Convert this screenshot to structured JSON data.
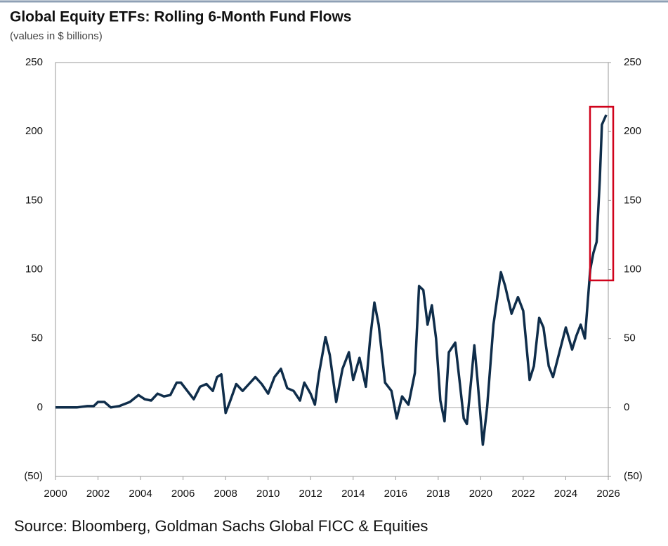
{
  "chart_data": {
    "type": "line",
    "title": "Global Equity ETFs: Rolling 6-Month Fund Flows",
    "subtitle": "(values in $ billions)",
    "source": "Source: Bloomberg, Goldman Sachs Global FICC & Equities",
    "color": "#0f2d4a",
    "x": [
      2000,
      2000.5,
      2001,
      2001.5,
      2001.8,
      2002,
      2002.3,
      2002.6,
      2003,
      2003.5,
      2003.9,
      2004.2,
      2004.5,
      2004.8,
      2005.1,
      2005.4,
      2005.7,
      2005.9,
      2006.2,
      2006.5,
      2006.8,
      2007.1,
      2007.4,
      2007.6,
      2007.8,
      2008.0,
      2008.2,
      2008.5,
      2008.8,
      2009.1,
      2009.4,
      2009.7,
      2010.0,
      2010.3,
      2010.6,
      2010.9,
      2011.2,
      2011.5,
      2011.7,
      2012.0,
      2012.2,
      2012.4,
      2012.7,
      2012.9,
      2013.2,
      2013.5,
      2013.8,
      2014.0,
      2014.3,
      2014.6,
      2014.8,
      2015.0,
      2015.2,
      2015.5,
      2015.8,
      2016.05,
      2016.3,
      2016.6,
      2016.9,
      2017.1,
      2017.3,
      2017.5,
      2017.7,
      2017.9,
      2018.1,
      2018.3,
      2018.5,
      2018.8,
      2019.0,
      2019.2,
      2019.35,
      2019.55,
      2019.7,
      2019.85,
      2020.1,
      2020.3,
      2020.6,
      2020.95,
      2021.15,
      2021.45,
      2021.75,
      2022.0,
      2022.3,
      2022.5,
      2022.75,
      2022.95,
      2023.2,
      2023.4,
      2023.7,
      2024.0,
      2024.3,
      2024.5,
      2024.7,
      2024.9,
      2025.15,
      2025.3,
      2025.45,
      2025.6,
      2025.7,
      2025.9
    ],
    "values": [
      0,
      0,
      0,
      1,
      1,
      4,
      4,
      0,
      1,
      4,
      9,
      6,
      5,
      10,
      8,
      9,
      18,
      18,
      12,
      6,
      15,
      17,
      12,
      22,
      24,
      -4,
      4,
      17,
      12,
      17,
      22,
      17,
      10,
      22,
      28,
      14,
      12,
      5,
      18,
      10,
      2,
      25,
      51,
      38,
      4,
      28,
      40,
      20,
      36,
      15,
      50,
      76,
      60,
      18,
      12,
      -8,
      8,
      2,
      25,
      88,
      85,
      60,
      74,
      50,
      5,
      -10,
      40,
      47,
      20,
      -8,
      -12,
      20,
      45,
      20,
      -27,
      0,
      60,
      98,
      88,
      68,
      80,
      70,
      20,
      30,
      65,
      58,
      30,
      22,
      40,
      58,
      42,
      52,
      60,
      50,
      100,
      112,
      120,
      165,
      205,
      212
    ],
    "xlim": [
      2000,
      2026
    ],
    "xticks": [
      2000,
      2002,
      2004,
      2006,
      2008,
      2010,
      2012,
      2014,
      2016,
      2018,
      2020,
      2022,
      2024,
      2026
    ],
    "ylim": [
      -50,
      250
    ],
    "yticks": [
      {
        "value": -50,
        "label": "(50)"
      },
      0,
      50,
      100,
      150,
      200,
      250
    ],
    "y2lim": [
      -50,
      250
    ],
    "y2ticks": [
      {
        "value": -50,
        "label": "(50)"
      },
      0,
      50,
      100,
      150,
      200,
      250
    ]
  }
}
